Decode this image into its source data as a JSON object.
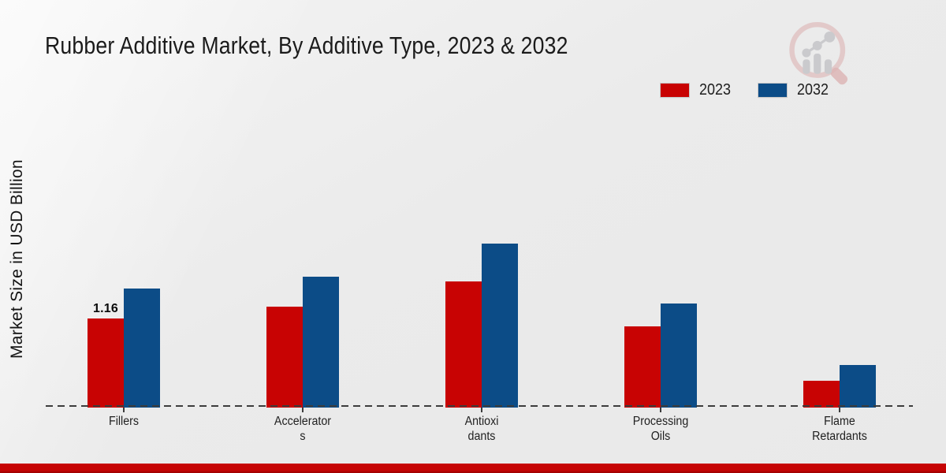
{
  "page": {
    "title": "Rubber Additive Market, By Additive Type, 2023 & 2032"
  },
  "icons": {
    "brand_logo": "magnifier-bar-chart-watermark"
  },
  "chart_data": {
    "type": "bar",
    "title": "Rubber Additive Market, By Additive Type, 2023 & 2032",
    "xlabel": "",
    "ylabel": "Market Size in USD Billion",
    "grid": false,
    "legend_position": "top-right",
    "baseline_axis": "dashed",
    "ylim": [
      0,
      2.4
    ],
    "categories": [
      "Fillers",
      "Accelerators",
      "Antioxidants",
      "Processing Oils",
      "Flame Retardants"
    ],
    "categories_display": [
      "Fillers",
      "Accelerator\ns",
      "Antioxi\ndants",
      "Processing\nOils",
      "Flame\nRetardants"
    ],
    "series": [
      {
        "name": "2023",
        "color": "#c80303",
        "values": [
          1.16,
          1.32,
          1.65,
          1.06,
          0.34
        ]
      },
      {
        "name": "2032",
        "color": "#0c4c87",
        "values": [
          1.55,
          1.71,
          2.15,
          1.36,
          0.55
        ]
      }
    ],
    "data_labels": [
      {
        "series": "2023",
        "category": "Fillers",
        "text": "1.16"
      }
    ],
    "colors": {
      "series_2023": "#c80303",
      "series_2032": "#0c4c87",
      "axis_dash": "#3c3c3c",
      "footer_strip": "#c60404",
      "background": "#ebebeb"
    }
  }
}
